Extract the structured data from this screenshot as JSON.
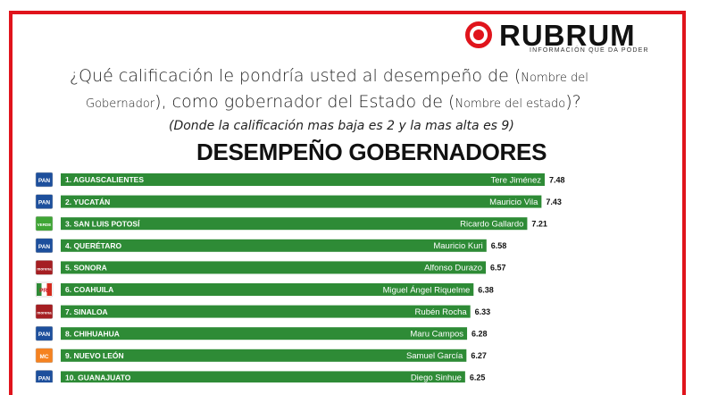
{
  "brand": {
    "name": "RUBRUM",
    "tagline": "INFORMACIÓN QUE DA PODER",
    "color": "#e0141c"
  },
  "question": {
    "line1_main": "¿Qué calificación le pondría usted al desempeño de (",
    "line1_small": "Nombre del",
    "line2_small": "Gobernador",
    "line2_mid": "), como gobernador del Estado de (",
    "line2_small2": "Nombre del estado",
    "line2_end": ")?",
    "note": "(Donde la calificación mas baja es 2 y la mas alta es 9)"
  },
  "chart_data": {
    "type": "bar",
    "orientation": "horizontal",
    "title": "DESEMPEÑO GOBERNADORES",
    "bar_color": "#2e8b36",
    "categories": [
      "1. AGUASCALIENTES",
      "2. YUCATÁN",
      "3. SAN LUIS POTOSÍ",
      "4. QUERÉTARO",
      "5. SONORA",
      "6. COAHUILA",
      "7. SINALOA",
      "8. CHIHUAHUA",
      "9. NUEVO LEÓN",
      "10. GUANAJUATO"
    ],
    "governors": [
      "Tere Jiménez",
      "Mauricio Vila",
      "Ricardo Gallardo",
      "Mauricio Kuri",
      "Alfonso Durazo",
      "Miguel Ángel Riquelme",
      "Rubén Rocha",
      "Maru Campos",
      "Samuel García",
      "Diego Sinhue"
    ],
    "parties": [
      "PAN",
      "PAN",
      "VERDE",
      "PAN",
      "MORENA",
      "PRI",
      "MORENA",
      "PAN",
      "MC",
      "PAN"
    ],
    "values": [
      7.48,
      7.43,
      7.21,
      6.58,
      6.57,
      6.38,
      6.33,
      6.28,
      6.27,
      6.25
    ],
    "xlim": [
      0,
      7.48
    ]
  },
  "party_styles": {
    "PAN": {
      "bg": "#1d4f9c",
      "fg": "#ffffff",
      "label": "PAN"
    },
    "VERDE": {
      "bg": "#3fa535",
      "fg": "#ffffff",
      "label": "VERDE"
    },
    "MORENA": {
      "bg": "#a51e22",
      "fg": "#ffffff",
      "label": "morena"
    },
    "PRI": {
      "bg": "#ffffff",
      "fg": "#cc1f2e",
      "label": "PRI"
    },
    "MC": {
      "bg": "#f58220",
      "fg": "#ffffff",
      "label": "MC"
    }
  }
}
